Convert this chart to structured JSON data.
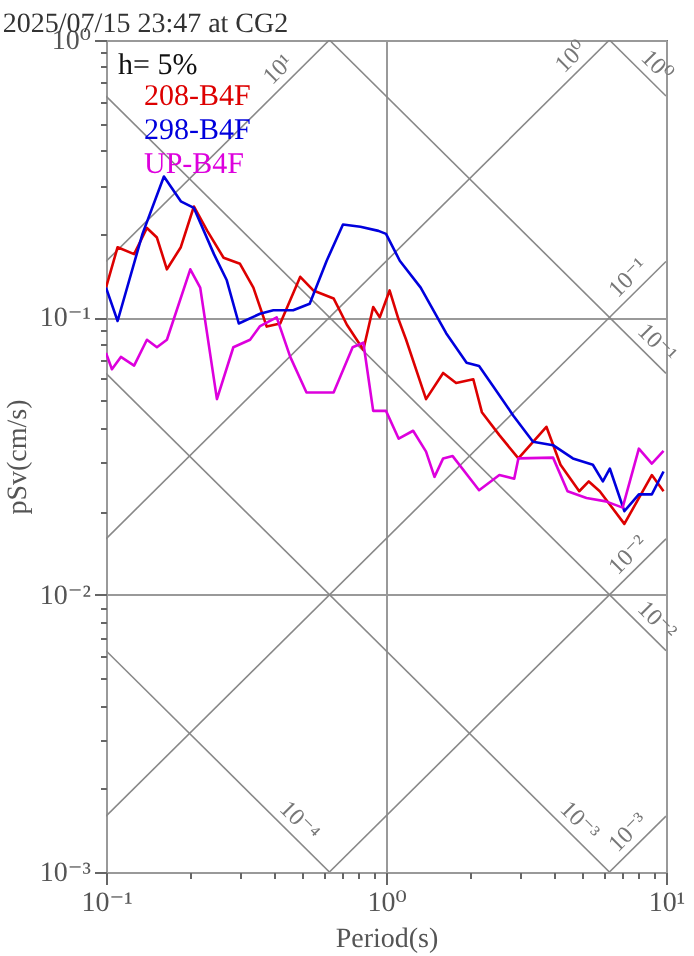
{
  "chart_data": {
    "type": "line",
    "title": "2025/07/15 23:47 at CG2",
    "xlabel": "Period(s)",
    "ylabel": "pSv(cm/s)",
    "log": "xy",
    "grid": true,
    "legend": "top left",
    "xlim": [
      0.1,
      10
    ],
    "ylim": [
      0.001,
      1
    ],
    "xticks": [
      {
        "value": 0.1,
        "label": "10⁻¹"
      },
      {
        "value": 0.2,
        "label": null
      },
      {
        "value": 0.3,
        "label": null
      },
      {
        "value": 0.4,
        "label": null
      },
      {
        "value": 0.5,
        "label": null
      },
      {
        "value": 0.6,
        "label": null
      },
      {
        "value": 0.7,
        "label": null
      },
      {
        "value": 0.8,
        "label": null
      },
      {
        "value": 0.9,
        "label": null
      },
      {
        "value": 1,
        "label": "10⁰"
      },
      {
        "value": 2,
        "label": null
      },
      {
        "value": 3,
        "label": null
      },
      {
        "value": 4,
        "label": null
      },
      {
        "value": 5,
        "label": null
      },
      {
        "value": 6,
        "label": null
      },
      {
        "value": 7,
        "label": null
      },
      {
        "value": 8,
        "label": null
      },
      {
        "value": 9,
        "label": null
      },
      {
        "value": 10,
        "label": "10¹"
      }
    ],
    "yticks": [
      {
        "value": 0.001,
        "label": "10⁻³"
      },
      {
        "value": 0.002,
        "label": null
      },
      {
        "value": 0.003,
        "label": null
      },
      {
        "value": 0.004,
        "label": null
      },
      {
        "value": 0.005,
        "label": null
      },
      {
        "value": 0.006,
        "label": null
      },
      {
        "value": 0.007,
        "label": null
      },
      {
        "value": 0.008,
        "label": null
      },
      {
        "value": 0.009,
        "label": null
      },
      {
        "value": 0.01,
        "label": "10⁻²"
      },
      {
        "value": 0.02,
        "label": null
      },
      {
        "value": 0.03,
        "label": null
      },
      {
        "value": 0.04,
        "label": null
      },
      {
        "value": 0.05,
        "label": null
      },
      {
        "value": 0.06,
        "label": null
      },
      {
        "value": 0.07,
        "label": null
      },
      {
        "value": 0.08,
        "label": null
      },
      {
        "value": 0.09,
        "label": null
      },
      {
        "value": 0.1,
        "label": "10⁻¹"
      },
      {
        "value": 0.2,
        "label": null
      },
      {
        "value": 0.3,
        "label": null
      },
      {
        "value": 0.4,
        "label": null
      },
      {
        "value": 0.5,
        "label": null
      },
      {
        "value": 0.6,
        "label": null
      },
      {
        "value": 0.7,
        "label": null
      },
      {
        "value": 0.8,
        "label": null
      },
      {
        "value": 0.9,
        "label": null
      },
      {
        "value": 1,
        "label": "10⁰"
      }
    ],
    "annotations": [
      "h= 5%",
      {
        "text": "10¹",
        "x": 0.45,
        "y": 0.716
      },
      {
        "text": "10⁰",
        "x": 5,
        "y": 0.796
      },
      {
        "text": "10⁰",
        "x": 8.5,
        "y": 0.739
      },
      {
        "text": "10⁻¹",
        "x": 8,
        "y": 0.127
      },
      {
        "text": "10⁻¹",
        "x": 8.5,
        "y": 0.0739
      },
      {
        "text": "10⁻²",
        "x": 8,
        "y": 0.0127
      },
      {
        "text": "10⁻²",
        "x": 8.5,
        "y": 0.00739
      },
      {
        "text": "10⁻³",
        "x": 4.5,
        "y": 0.0014
      },
      {
        "text": "10⁻³",
        "x": 8,
        "y": 0.00127
      },
      {
        "text": "10⁻⁴",
        "x": 0.45,
        "y": 0.0014
      }
    ],
    "series": [
      {
        "color": "#888888",
        "x": [
          0.1,
          0.628
        ],
        "values": [
          0.159,
          1
        ]
      },
      {
        "color": "#888888",
        "x": [
          0.1,
          6.28
        ],
        "values": [
          0.0159,
          1
        ]
      },
      {
        "color": "#888888",
        "x": [
          0.1,
          10
        ],
        "values": [
          0.00159,
          0.159
        ]
      },
      {
        "color": "#888888",
        "x": [
          0.628,
          10
        ],
        "values": [
          0.001,
          0.0159
        ]
      },
      {
        "color": "#888888",
        "x": [
          6.28,
          10
        ],
        "values": [
          0.001,
          0.00159
        ]
      },
      {
        "color": "#888888",
        "x": [
          6.28,
          10
        ],
        "values": [
          1,
          0.628
        ]
      },
      {
        "color": "#888888",
        "x": [
          0.628,
          10
        ],
        "values": [
          1,
          0.0628
        ]
      },
      {
        "color": "#888888",
        "x": [
          0.1,
          10
        ],
        "values": [
          0.628,
          0.00628
        ]
      },
      {
        "color": "#888888",
        "x": [
          0.1,
          6.28
        ],
        "values": [
          0.0628,
          0.001
        ]
      },
      {
        "color": "#888888",
        "x": [
          0.1,
          0.628
        ],
        "values": [
          0.00628,
          0.001
        ]
      },
      {
        "name": "208-B4F",
        "color": "#dd0000",
        "x": [
          0.1,
          0.11,
          0.126,
          0.14,
          0.152,
          0.165,
          0.185,
          0.206,
          0.23,
          0.263,
          0.301,
          0.336,
          0.375,
          0.419,
          0.494,
          0.55,
          0.65,
          0.725,
          0.83,
          0.9,
          0.95,
          1.03,
          1.11,
          1.18,
          1.39,
          1.6,
          1.78,
          2.05,
          2.2,
          2.54,
          2.97,
          3.74,
          4.2,
          4.9,
          5.3,
          5.8,
          7.1,
          8.9,
          9.8
        ],
        "values": [
          0.128,
          0.179,
          0.169,
          0.21,
          0.194,
          0.149,
          0.179,
          0.251,
          0.205,
          0.164,
          0.156,
          0.128,
          0.0926,
          0.095,
          0.14,
          0.125,
          0.117,
          0.094,
          0.0764,
          0.109,
          0.1,
          0.125,
          0.098,
          0.083,
          0.0507,
          0.063,
          0.058,
          0.0598,
          0.0455,
          0.0376,
          0.031,
          0.0403,
          0.0294,
          0.0236,
          0.0256,
          0.0236,
          0.018,
          0.027,
          0.0236
        ]
      },
      {
        "name": "298-B4F",
        "color": "#0000dd",
        "x": [
          0.1,
          0.11,
          0.135,
          0.161,
          0.185,
          0.206,
          0.243,
          0.27,
          0.298,
          0.355,
          0.396,
          0.466,
          0.534,
          0.614,
          0.702,
          0.81,
          0.94,
          1.0,
          1.12,
          1.33,
          1.64,
          1.94,
          2.15,
          2.41,
          2.85,
          3.35,
          3.95,
          4.65,
          5.48,
          5.95,
          6.3,
          7.1,
          8.0,
          8.9,
          9.8
        ],
        "values": [
          0.128,
          0.097,
          0.2,
          0.322,
          0.262,
          0.248,
          0.169,
          0.136,
          0.095,
          0.103,
          0.106,
          0.106,
          0.112,
          0.16,
          0.216,
          0.212,
          0.205,
          0.2,
          0.16,
          0.128,
          0.0877,
          0.0686,
          0.0667,
          0.0566,
          0.0442,
          0.0356,
          0.0346,
          0.031,
          0.0294,
          0.0256,
          0.0285,
          0.02,
          0.023,
          0.023,
          0.0278
        ]
      },
      {
        "name": "UP-B4F",
        "color": "#dd00dd",
        "x": [
          0.1,
          0.105,
          0.113,
          0.126,
          0.14,
          0.152,
          0.165,
          0.2,
          0.217,
          0.249,
          0.285,
          0.327,
          0.355,
          0.407,
          0.455,
          0.52,
          0.65,
          0.76,
          0.83,
          0.9,
          1.0,
          1.11,
          1.25,
          1.39,
          1.49,
          1.6,
          1.73,
          2.15,
          2.54,
          2.87,
          2.97,
          3.95,
          4.45,
          5.2,
          6.1,
          7.0,
          8.0,
          8.9,
          9.8
        ],
        "values": [
          0.0744,
          0.065,
          0.072,
          0.067,
          0.083,
          0.078,
          0.083,
          0.149,
          0.128,
          0.0507,
          0.078,
          0.083,
          0.093,
          0.1,
          0.072,
          0.0536,
          0.0536,
          0.078,
          0.081,
          0.046,
          0.046,
          0.0365,
          0.039,
          0.0328,
          0.0266,
          0.031,
          0.0316,
          0.0238,
          0.027,
          0.0262,
          0.031,
          0.0312,
          0.0236,
          0.0223,
          0.0217,
          0.0206,
          0.0336,
          0.0297,
          0.033
        ]
      }
    ]
  }
}
